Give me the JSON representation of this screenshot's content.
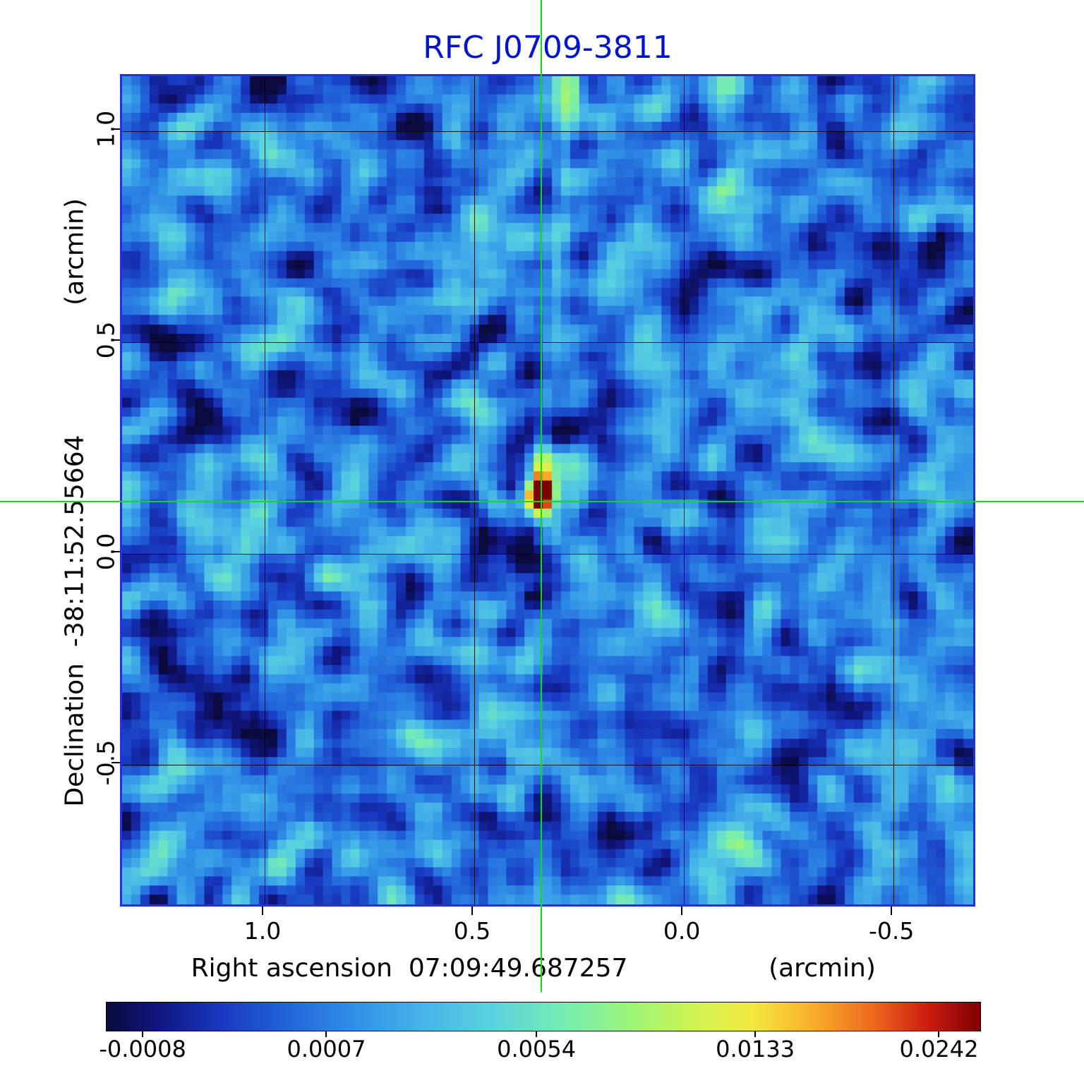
{
  "title": "RFC J0709-3811",
  "colors": {
    "title": "#0014cc",
    "crosshair": "#00e400",
    "frame": "#2433cc",
    "grid": "#000000"
  },
  "axes": {
    "y_axis": {
      "unit_label": "(arcmin)",
      "axis_label": "Declination  -38:11:52.55664",
      "tick_labels": [
        "1.0",
        "0.5",
        "0.0",
        "-0.5"
      ]
    },
    "x_axis": {
      "axis_label": "Right ascension  07:09:49.687257",
      "unit_label": "(arcmin)",
      "tick_labels": [
        "1.0",
        "0.5",
        "0.0",
        "-0.5"
      ]
    }
  },
  "colorbar": {
    "tick_labels": [
      "-0.0008",
      "0.0007",
      "0.0054",
      "0.0133",
      "0.0242"
    ],
    "tick_positions": [
      0.042,
      0.252,
      0.492,
      0.742,
      0.952
    ]
  },
  "chart_data": {
    "type": "heatmap",
    "title": "RFC J0709-3811",
    "xlabel": "Right ascension  07:09:49.687257 (arcmin)",
    "ylabel": "Declination  -38:11:52.55664 (arcmin)",
    "xlim": [
      1.34,
      -0.7
    ],
    "ylim": [
      1.13,
      -0.84
    ],
    "x_ticks": [
      1.0,
      0.5,
      0.0,
      -0.5
    ],
    "y_ticks": [
      1.0,
      0.5,
      0.0,
      -0.5
    ],
    "grid": true,
    "colorbar_values": [
      -0.0008,
      0.0007,
      0.0054,
      0.0133,
      0.0242
    ],
    "peak_value": 0.0242,
    "source": {
      "x_arcmin": 0.335,
      "y_arcmin": 0.119
    },
    "colormap_stops": [
      [
        0.0,
        "#0a0a3c"
      ],
      [
        0.06,
        "#101680"
      ],
      [
        0.13,
        "#1838c0"
      ],
      [
        0.2,
        "#2060d8"
      ],
      [
        0.28,
        "#2f8ee6"
      ],
      [
        0.36,
        "#45b4e8"
      ],
      [
        0.44,
        "#5ad2de"
      ],
      [
        0.52,
        "#74ecb4"
      ],
      [
        0.6,
        "#9cf478"
      ],
      [
        0.67,
        "#ccf452"
      ],
      [
        0.74,
        "#f4e83c"
      ],
      [
        0.81,
        "#f8ae2a"
      ],
      [
        0.88,
        "#ee641e"
      ],
      [
        0.94,
        "#cc1c10"
      ],
      [
        1.0,
        "#7c0000"
      ]
    ],
    "render": {
      "nx": 93,
      "ny": 90,
      "seed": 77,
      "background": {
        "base_t": 0.24,
        "contrast": 1.45
      },
      "streaks": [
        {
          "x1": 0.0,
          "y1": 0.295,
          "x2": 0.492,
          "y2": 0.506,
          "w": 1.7,
          "amp": -0.11
        },
        {
          "x1": 0.492,
          "y1": 0.506,
          "x2": 1.0,
          "y2": 0.725,
          "w": 2.0,
          "amp": -0.055
        },
        {
          "x1": 0.475,
          "y1": 0.545,
          "x2": 0.418,
          "y2": 1.0,
          "w": 1.3,
          "amp": -0.085
        },
        {
          "x1": 0.492,
          "y1": 0.5,
          "x2": 0.528,
          "y2": 0.0,
          "w": 1.1,
          "amp": 0.14
        }
      ],
      "blobs": [
        {
          "x": 0.492,
          "y": 0.506,
          "sx": 1.25,
          "sy": 1.25,
          "amp": 0.95
        },
        {
          "x": 0.492,
          "y": 0.495,
          "sx": 1.0,
          "sy": 3.2,
          "amp": 0.35
        },
        {
          "x": 0.49,
          "y": 0.548,
          "sx": 0.9,
          "sy": 0.9,
          "amp": -0.28
        },
        {
          "x": 0.482,
          "y": 0.628,
          "sx": 1.0,
          "sy": 1.0,
          "amp": -0.25
        },
        {
          "x": 0.449,
          "y": 0.498,
          "sx": 0.8,
          "sy": 0.8,
          "amp": -0.2
        },
        {
          "x": 0.53,
          "y": 0.52,
          "sx": 1.1,
          "sy": 1.1,
          "amp": 0.1
        }
      ]
    }
  }
}
